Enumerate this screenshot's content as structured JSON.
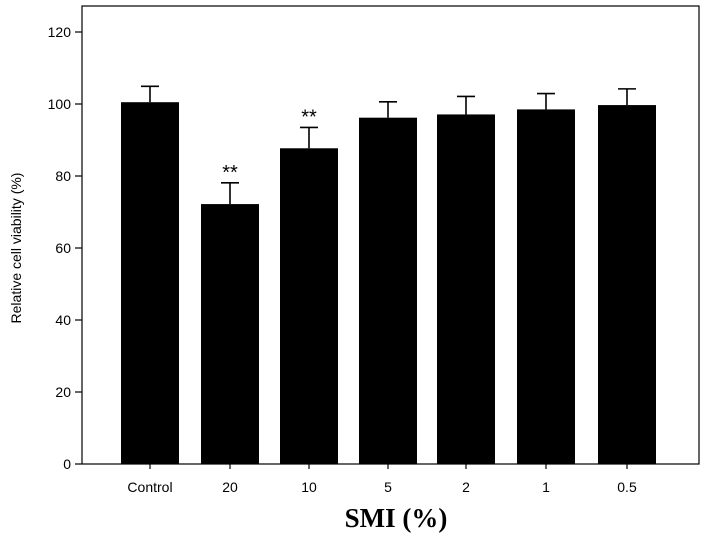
{
  "chart_data": {
    "type": "bar",
    "categories": [
      "Control",
      "20",
      "10",
      "5",
      "2",
      "1",
      "0.5"
    ],
    "values": [
      100.5,
      72.2,
      87.7,
      96.2,
      97.1,
      98.5,
      99.7
    ],
    "errors": [
      4.4,
      5.9,
      5.8,
      4.4,
      5.0,
      4.4,
      4.5
    ],
    "annotations": [
      "",
      "**",
      "**",
      "",
      "",
      "",
      ""
    ],
    "title": "",
    "xlabel": "SMI (%)",
    "ylabel": "Relative cell viability (%)",
    "ylim": [
      0,
      120
    ],
    "yticks": [
      0,
      20,
      40,
      60,
      80,
      100,
      120
    ],
    "grid": false,
    "bar_color": "#000000"
  }
}
